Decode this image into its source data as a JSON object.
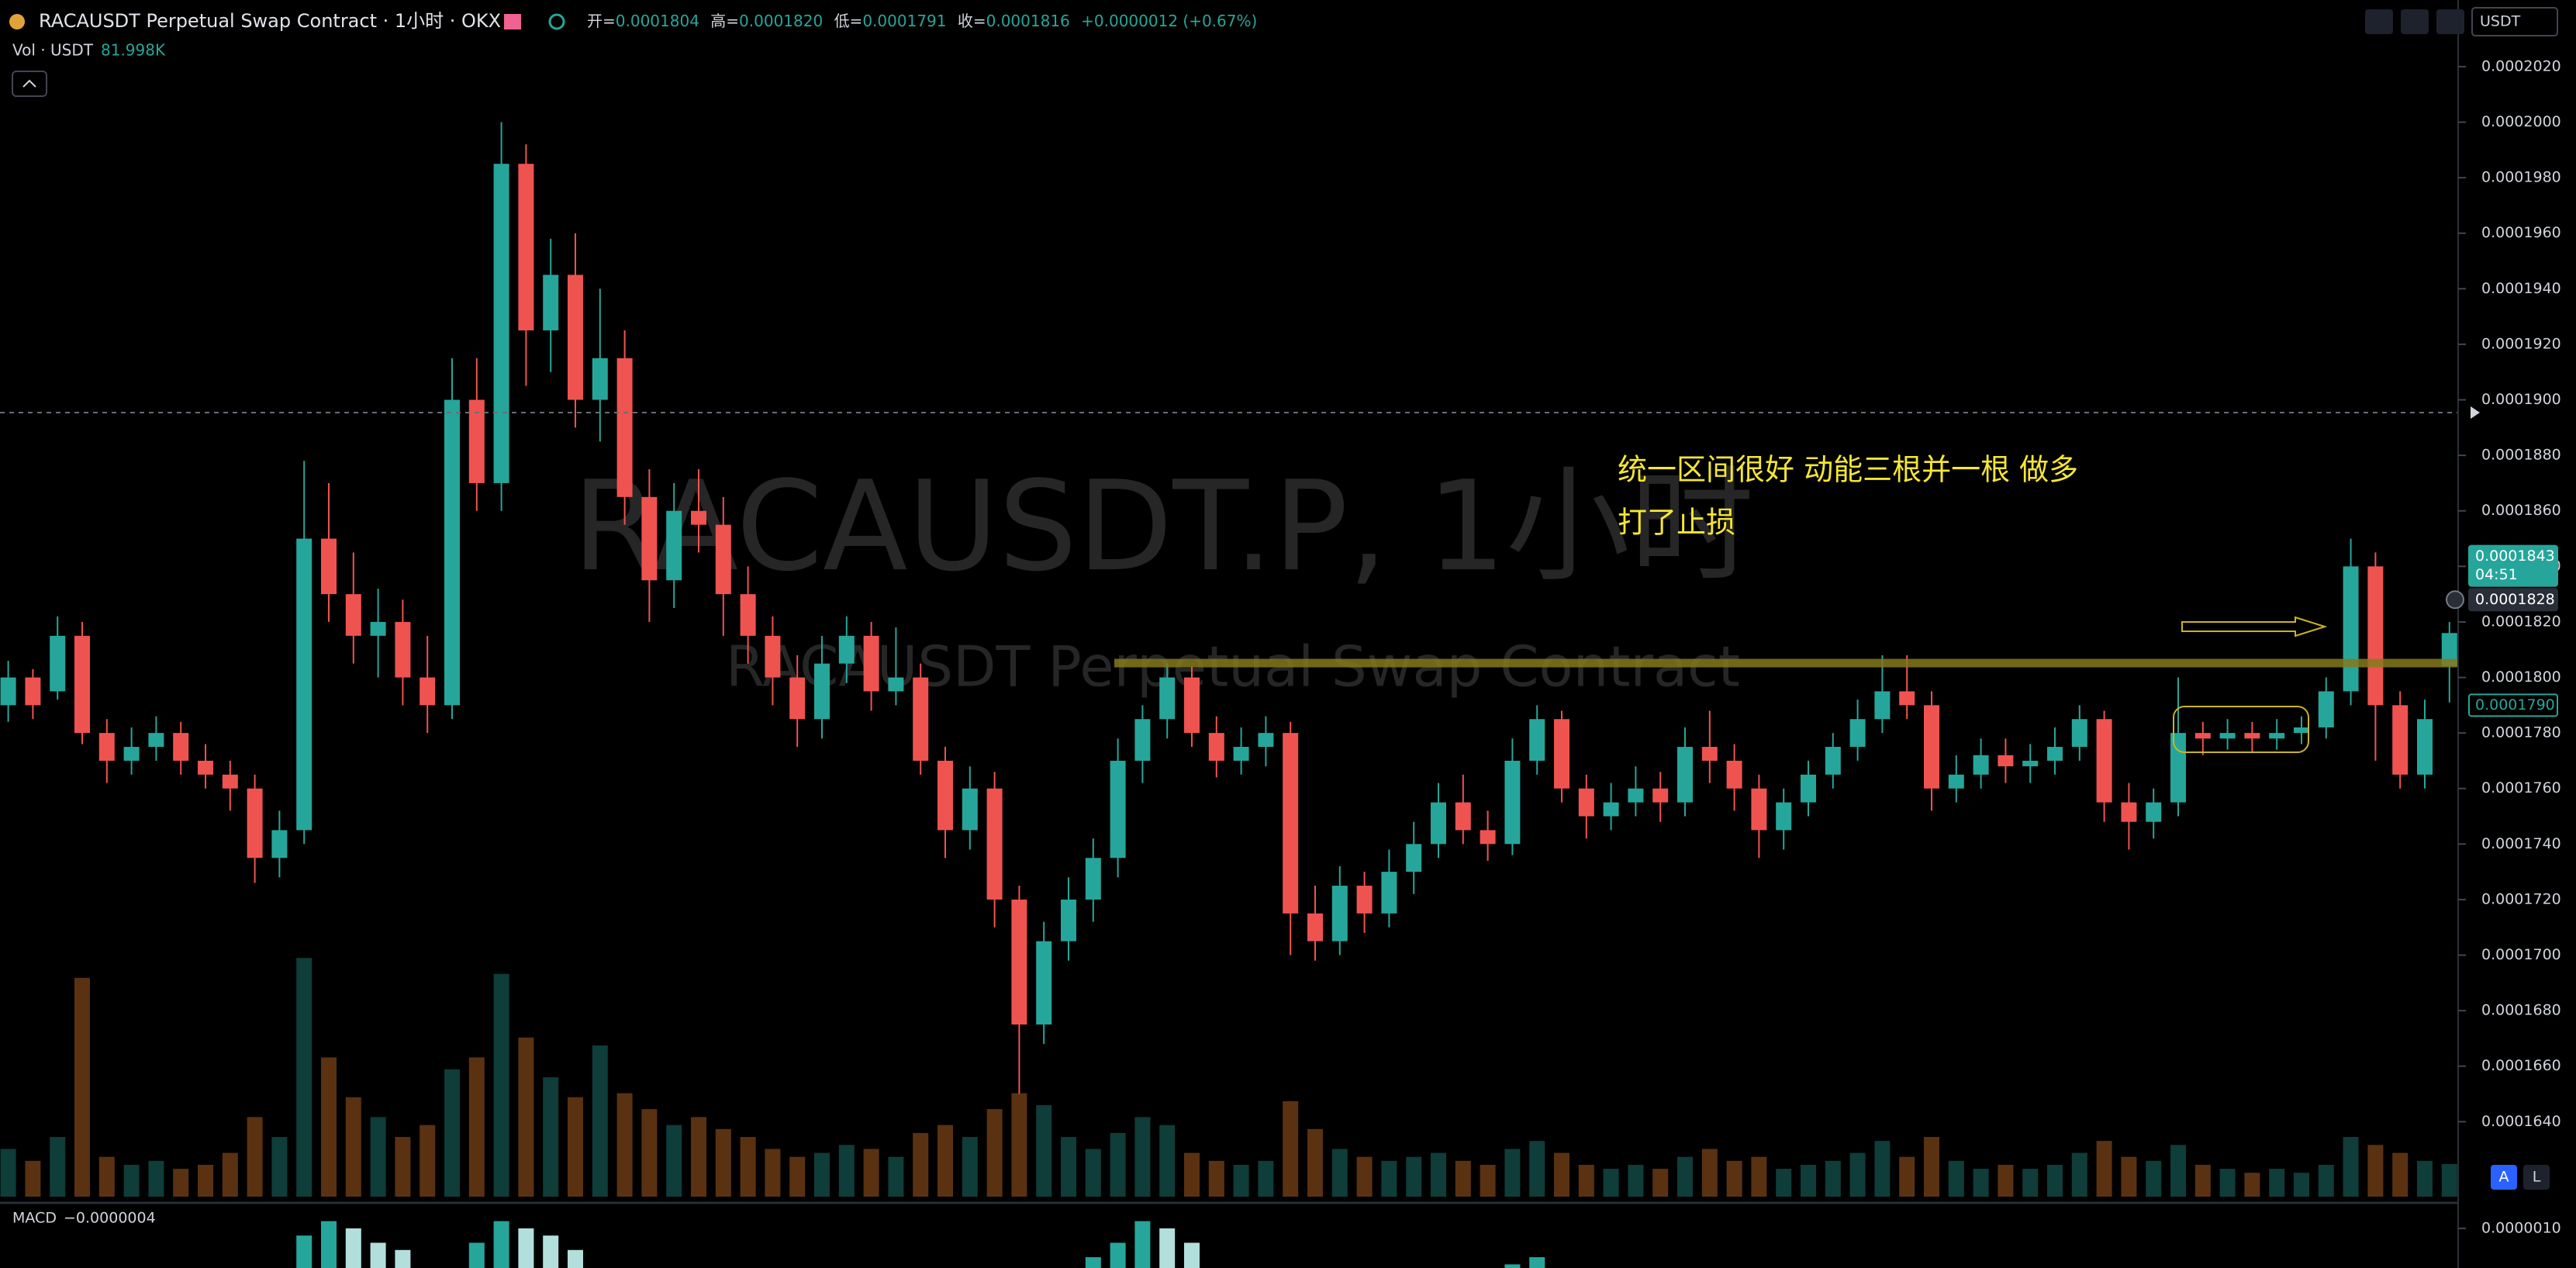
{
  "header": {
    "symbol": "RACAUSDT Perpetual Swap Contract · 1小时 · OKX",
    "open_label": "开=",
    "open": "0.0001804",
    "high_label": "高=",
    "high": "0.0001820",
    "low_label": "低=",
    "low": "0.0001791",
    "close_label": "收=",
    "close": "0.0001816",
    "change": "+0.0000012 (+0.67%)",
    "volume_label": "Vol · USDT",
    "volume_value": "81.998K",
    "currency": "USDT",
    "macd_label": "MACD",
    "macd_value": "−0.0000004",
    "button_a": "A",
    "button_l": "L",
    "countdown": "04:51"
  },
  "chart_data": {
    "type": "candlestick",
    "watermark": "RACAUSDT.P, 1小时",
    "watermark_sub": "RACAUSDT Perpetual Swap Contract",
    "annotations": [
      "统一区间很好 动能三根并一根 做多",
      "打了止损"
    ],
    "up_color": "#26a69a",
    "down_color": "#ef5350",
    "volume_up_color": "#0f3d39",
    "volume_down_color": "#5a3211",
    "ylim": [
      0.0001613,
      0.0002044
    ],
    "yticks": [
      {
        "value": 0.000202,
        "label": "0.0002020"
      },
      {
        "value": 0.0002,
        "label": "0.0002000"
      },
      {
        "value": 0.000198,
        "label": "0.0001980"
      },
      {
        "value": 0.000196,
        "label": "0.0001960"
      },
      {
        "value": 0.000194,
        "label": "0.0001940"
      },
      {
        "value": 0.000192,
        "label": "0.0001920"
      },
      {
        "value": 0.00019,
        "label": "0.0001900"
      },
      {
        "value": 0.000188,
        "label": "0.0001880"
      },
      {
        "value": 0.000186,
        "label": "0.0001860"
      },
      {
        "value": 0.000184,
        "label": "0.0001840"
      },
      {
        "value": 0.000182,
        "label": "0.0001820"
      },
      {
        "value": 0.00018,
        "label": "0.0001800"
      },
      {
        "value": 0.000178,
        "label": "0.0001780"
      },
      {
        "value": 0.000176,
        "label": "0.0001760"
      },
      {
        "value": 0.000174,
        "label": "0.0001740"
      },
      {
        "value": 0.000172,
        "label": "0.0001720"
      },
      {
        "value": 0.00017,
        "label": "0.0001700"
      },
      {
        "value": 0.000168,
        "label": "0.0001680"
      },
      {
        "value": 0.000166,
        "label": "0.0001660"
      },
      {
        "value": 0.000164,
        "label": "0.0001640"
      }
    ],
    "price_labels": [
      {
        "value": 0.0001843,
        "color": "#26a69a"
      },
      {
        "value": 0.0001828,
        "color": "#2a2e39"
      },
      {
        "value": {
          "value": 0.000179,
          "label": "0.0001790"
        },
        "color": "#000000"
      }
    ],
    "candles": [
      [
        0.000179,
        0.0001806,
        0.0001784,
        0.00018
      ],
      [
        0.00018,
        0.0001803,
        0.0001785,
        0.000179
      ],
      [
        0.0001795,
        0.0001822,
        0.0001792,
        0.0001815
      ],
      [
        0.0001815,
        0.000182,
        0.0001776,
        0.000178
      ],
      [
        0.000178,
        0.0001785,
        0.0001762,
        0.000177
      ],
      [
        0.000177,
        0.0001782,
        0.0001765,
        0.0001775
      ],
      [
        0.0001775,
        0.0001786,
        0.000177,
        0.000178
      ],
      [
        0.000178,
        0.0001784,
        0.0001765,
        0.000177
      ],
      [
        0.000177,
        0.0001776,
        0.000176,
        0.0001765
      ],
      [
        0.0001765,
        0.000177,
        0.0001752,
        0.000176
      ],
      [
        0.000176,
        0.0001765,
        0.0001726,
        0.0001735
      ],
      [
        0.0001735,
        0.0001752,
        0.0001728,
        0.0001745
      ],
      [
        0.0001745,
        0.0001878,
        0.000174,
        0.000185
      ],
      [
        0.000185,
        0.000187,
        0.000182,
        0.000183
      ],
      [
        0.000183,
        0.0001845,
        0.0001805,
        0.0001815
      ],
      [
        0.0001815,
        0.0001832,
        0.00018,
        0.000182
      ],
      [
        0.000182,
        0.0001828,
        0.000179,
        0.00018
      ],
      [
        0.00018,
        0.0001815,
        0.000178,
        0.000179
      ],
      [
        0.000179,
        0.0001915,
        0.0001785,
        0.00019
      ],
      [
        0.00019,
        0.0001915,
        0.000186,
        0.000187
      ],
      [
        0.000187,
        0.0002,
        0.000186,
        0.0001985
      ],
      [
        0.0001985,
        0.0001992,
        0.0001905,
        0.0001925
      ],
      [
        0.0001925,
        0.0001958,
        0.000191,
        0.0001945
      ],
      [
        0.0001945,
        0.000196,
        0.000189,
        0.00019
      ],
      [
        0.00019,
        0.000194,
        0.0001885,
        0.0001915
      ],
      [
        0.0001915,
        0.0001925,
        0.0001855,
        0.0001865
      ],
      [
        0.0001865,
        0.0001875,
        0.000182,
        0.0001835
      ],
      [
        0.0001835,
        0.000187,
        0.0001825,
        0.000186
      ],
      [
        0.000186,
        0.0001875,
        0.0001845,
        0.0001855
      ],
      [
        0.0001855,
        0.0001865,
        0.0001815,
        0.000183
      ],
      [
        0.000183,
        0.000184,
        0.0001805,
        0.0001815
      ],
      [
        0.0001815,
        0.0001822,
        0.000179,
        0.00018
      ],
      [
        0.00018,
        0.0001808,
        0.0001775,
        0.0001785
      ],
      [
        0.0001785,
        0.0001815,
        0.0001778,
        0.0001805
      ],
      [
        0.0001805,
        0.0001822,
        0.0001798,
        0.0001815
      ],
      [
        0.0001815,
        0.000182,
        0.0001788,
        0.0001795
      ],
      [
        0.0001795,
        0.0001818,
        0.000179,
        0.00018
      ],
      [
        0.00018,
        0.0001805,
        0.0001765,
        0.000177
      ],
      [
        0.000177,
        0.0001775,
        0.0001735,
        0.0001745
      ],
      [
        0.0001745,
        0.0001768,
        0.0001738,
        0.000176
      ],
      [
        0.000176,
        0.0001766,
        0.000171,
        0.000172
      ],
      [
        0.000172,
        0.0001725,
        0.000165,
        0.0001675
      ],
      [
        0.0001675,
        0.0001712,
        0.0001668,
        0.0001705
      ],
      [
        0.0001705,
        0.0001728,
        0.0001698,
        0.000172
      ],
      [
        0.000172,
        0.0001742,
        0.0001712,
        0.0001735
      ],
      [
        0.0001735,
        0.0001778,
        0.0001728,
        0.000177
      ],
      [
        0.000177,
        0.000179,
        0.0001762,
        0.0001785
      ],
      [
        0.0001785,
        0.0001805,
        0.0001778,
        0.00018
      ],
      [
        0.00018,
        0.0001804,
        0.0001775,
        0.000178
      ],
      [
        0.000178,
        0.0001786,
        0.0001764,
        0.000177
      ],
      [
        0.000177,
        0.0001782,
        0.0001765,
        0.0001775
      ],
      [
        0.0001775,
        0.0001786,
        0.0001768,
        0.000178
      ],
      [
        0.000178,
        0.0001784,
        0.00017,
        0.0001715
      ],
      [
        0.0001715,
        0.0001725,
        0.0001698,
        0.0001705
      ],
      [
        0.0001705,
        0.0001732,
        0.00017,
        0.0001725
      ],
      [
        0.0001725,
        0.000173,
        0.0001708,
        0.0001715
      ],
      [
        0.0001715,
        0.0001738,
        0.000171,
        0.000173
      ],
      [
        0.000173,
        0.0001748,
        0.0001722,
        0.000174
      ],
      [
        0.000174,
        0.0001762,
        0.0001735,
        0.0001755
      ],
      [
        0.0001755,
        0.0001765,
        0.000174,
        0.0001745
      ],
      [
        0.0001745,
        0.0001752,
        0.0001734,
        0.000174
      ],
      [
        0.000174,
        0.0001778,
        0.0001736,
        0.000177
      ],
      [
        0.000177,
        0.000179,
        0.0001765,
        0.0001785
      ],
      [
        0.0001785,
        0.0001788,
        0.0001755,
        0.000176
      ],
      [
        0.000176,
        0.0001765,
        0.0001742,
        0.000175
      ],
      [
        0.000175,
        0.0001762,
        0.0001745,
        0.0001755
      ],
      [
        0.0001755,
        0.0001768,
        0.000175,
        0.000176
      ],
      [
        0.000176,
        0.0001766,
        0.0001748,
        0.0001755
      ],
      [
        0.0001755,
        0.0001782,
        0.000175,
        0.0001775
      ],
      [
        0.0001775,
        0.0001788,
        0.0001762,
        0.000177
      ],
      [
        0.000177,
        0.0001776,
        0.0001752,
        0.000176
      ],
      [
        0.000176,
        0.0001765,
        0.0001735,
        0.0001745
      ],
      [
        0.0001745,
        0.000176,
        0.0001738,
        0.0001755
      ],
      [
        0.0001755,
        0.000177,
        0.000175,
        0.0001765
      ],
      [
        0.0001765,
        0.000178,
        0.000176,
        0.0001775
      ],
      [
        0.0001775,
        0.0001792,
        0.000177,
        0.0001785
      ],
      [
        0.0001785,
        0.0001808,
        0.000178,
        0.0001795
      ],
      [
        0.0001795,
        0.0001808,
        0.0001785,
        0.000179
      ],
      [
        0.000179,
        0.0001795,
        0.0001752,
        0.000176
      ],
      [
        0.000176,
        0.0001772,
        0.0001755,
        0.0001765
      ],
      [
        0.0001765,
        0.0001778,
        0.000176,
        0.0001772
      ],
      [
        0.0001772,
        0.0001778,
        0.0001762,
        0.0001768
      ],
      [
        0.0001768,
        0.0001776,
        0.0001762,
        0.000177
      ],
      [
        0.000177,
        0.0001782,
        0.0001765,
        0.0001775
      ],
      [
        0.0001775,
        0.000179,
        0.000177,
        0.0001785
      ],
      [
        0.0001785,
        0.0001788,
        0.0001748,
        0.0001755
      ],
      [
        0.0001755,
        0.0001762,
        0.0001738,
        0.0001748
      ],
      [
        0.0001748,
        0.000176,
        0.0001742,
        0.0001755
      ],
      [
        0.0001755,
        0.00018,
        0.000175,
        0.000178
      ],
      [
        0.000178,
        0.0001784,
        0.0001772,
        0.0001778
      ],
      [
        0.0001778,
        0.0001785,
        0.0001774,
        0.000178
      ],
      [
        0.000178,
        0.0001784,
        0.0001773,
        0.0001778
      ],
      [
        0.0001778,
        0.0001785,
        0.0001774,
        0.000178
      ],
      [
        0.000178,
        0.0001786,
        0.0001776,
        0.0001782
      ],
      [
        0.0001782,
        0.00018,
        0.0001778,
        0.0001795
      ],
      [
        0.0001795,
        0.000185,
        0.000179,
        0.000184
      ],
      [
        0.000184,
        0.0001845,
        0.000177,
        0.000179
      ],
      [
        0.000179,
        0.0001795,
        0.000176,
        0.0001765
      ],
      [
        0.0001765,
        0.0001792,
        0.000176,
        0.0001785
      ],
      [
        0.0001804,
        0.000182,
        0.0001791,
        0.0001816
      ]
    ],
    "volume_ylim": [
      0,
      1000000
    ],
    "volumes": [
      120000,
      90000,
      150000,
      550000,
      100000,
      80000,
      90000,
      70000,
      80000,
      110000,
      200000,
      150000,
      600000,
      350000,
      250000,
      200000,
      150000,
      180000,
      320000,
      350000,
      560000,
      400000,
      300000,
      250000,
      380000,
      260000,
      220000,
      180000,
      200000,
      170000,
      150000,
      120000,
      100000,
      110000,
      130000,
      120000,
      100000,
      160000,
      180000,
      150000,
      220000,
      260000,
      230000,
      150000,
      120000,
      160000,
      200000,
      180000,
      110000,
      90000,
      80000,
      90000,
      240000,
      170000,
      120000,
      100000,
      90000,
      100000,
      110000,
      90000,
      80000,
      120000,
      140000,
      110000,
      80000,
      70000,
      80000,
      70000,
      100000,
      120000,
      90000,
      100000,
      70000,
      80000,
      90000,
      110000,
      140000,
      100000,
      150000,
      90000,
      70000,
      80000,
      70000,
      80000,
      110000,
      140000,
      100000,
      90000,
      130000,
      80000,
      70000,
      60000,
      70000,
      60000,
      80000,
      150000,
      130000,
      110000,
      90000,
      81998
    ],
    "macd_ylim": [
      4.5e-07,
      1.3e-06
    ],
    "macd_yticks": [
      {
        "value": 1e-06,
        "label": "0.0000010"
      }
    ],
    "macd": [
      0,
      0,
      0,
      0,
      0,
      0,
      0,
      0,
      0,
      0,
      0,
      0,
      9e-07,
      1.1e-06,
      1e-06,
      8e-07,
      7e-07,
      0,
      0,
      8e-07,
      1.1e-06,
      1e-06,
      9e-07,
      7e-07,
      0,
      0,
      0,
      0,
      0,
      0,
      0,
      0,
      0,
      0,
      0,
      0,
      0,
      0,
      0,
      0,
      0,
      0,
      0,
      0,
      6e-07,
      8e-07,
      1.1e-06,
      1e-06,
      8e-07,
      0,
      0,
      0,
      0,
      0,
      0,
      0,
      0,
      0,
      0,
      0,
      0,
      5e-07,
      6e-07,
      0,
      0,
      0,
      0,
      0,
      0,
      0,
      0,
      0,
      0,
      0,
      0,
      0,
      0,
      0,
      0,
      0,
      0,
      0,
      0,
      0,
      0,
      0,
      0,
      0,
      0,
      0,
      0,
      0,
      0,
      0,
      0,
      0,
      0,
      0,
      0,
      0
    ]
  }
}
